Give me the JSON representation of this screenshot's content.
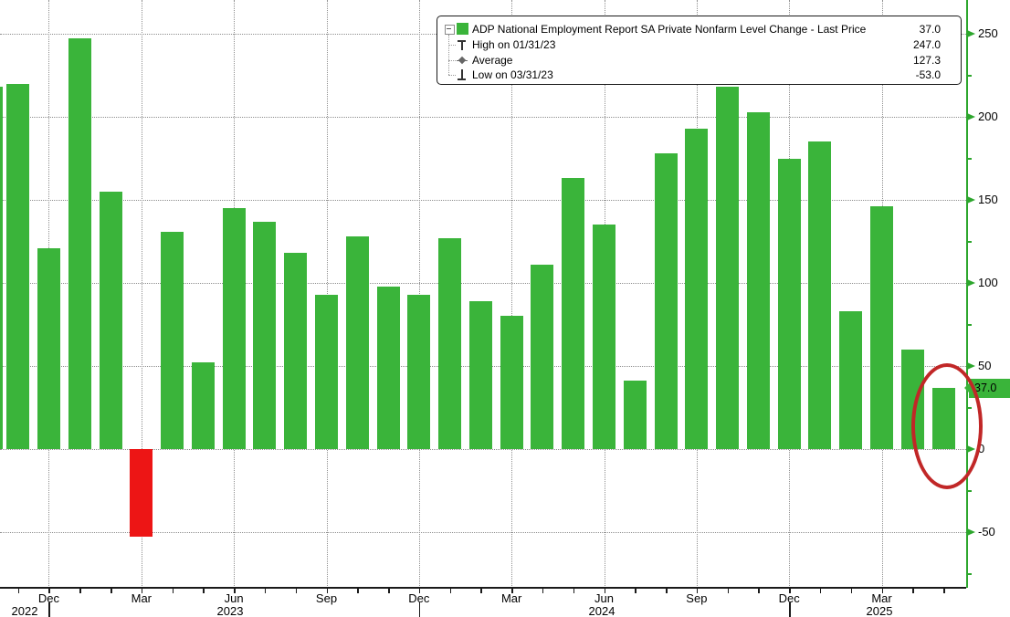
{
  "legend": {
    "rows": [
      {
        "marker": "series-swatch",
        "label": "ADP National Employment Report SA Private Nonfarm Level Change - Last Price",
        "value": "37.0"
      },
      {
        "marker": "high-marker",
        "label": "High on 01/31/23",
        "value": "247.0"
      },
      {
        "marker": "average-marker",
        "label": "Average",
        "value": "127.3"
      },
      {
        "marker": "low-marker",
        "label": "Low on 03/31/23",
        "value": "-53.0"
      }
    ]
  },
  "y_axis": {
    "major_ticks": [
      250,
      200,
      150,
      100,
      50,
      0,
      -50
    ],
    "minor_ticks": [
      225,
      175,
      125,
      75,
      25,
      -25,
      -75
    ],
    "last_price_badge": "37.0"
  },
  "x_axis": {
    "quarter_ticks": [
      "Dec 2022",
      "Mar 2023",
      "Jun 2023",
      "Sep 2023",
      "Dec 2023",
      "Mar 2024",
      "Jun 2024",
      "Sep 2024",
      "Dec 2024",
      "Mar 2025"
    ],
    "quarter_labels": [
      "Dec",
      "Mar",
      "Jun",
      "Sep",
      "Dec",
      "Mar",
      "Jun",
      "Sep",
      "Dec",
      "Mar"
    ],
    "year_labels": [
      "2022",
      "2023",
      "2024",
      "2025"
    ]
  },
  "chart_data": {
    "type": "bar",
    "title": "ADP National Employment Report SA Private Nonfarm Level Change",
    "x": [
      "Oct 2022",
      "Nov 2022",
      "Dec 2022",
      "Jan 2023",
      "Feb 2023",
      "Mar 2023",
      "Apr 2023",
      "May 2023",
      "Jun 2023",
      "Jul 2023",
      "Aug 2023",
      "Sep 2023",
      "Oct 2023",
      "Nov 2023",
      "Dec 2023",
      "Jan 2024",
      "Feb 2024",
      "Mar 2024",
      "Apr 2024",
      "May 2024",
      "Jun 2024",
      "Jul 2024",
      "Aug 2024",
      "Sep 2024",
      "Oct 2024",
      "Nov 2024",
      "Dec 2024",
      "Jan 2025",
      "Feb 2025",
      "Mar 2025",
      "Apr 2025",
      "May 2025"
    ],
    "values": [
      218,
      220,
      121,
      247,
      155,
      -53,
      131,
      52,
      145,
      137,
      118,
      93,
      128,
      98,
      93,
      127,
      89,
      80,
      111,
      163,
      135,
      41,
      178,
      193,
      218,
      203,
      175,
      185,
      83,
      146,
      60,
      37
    ],
    "first_bar_partially_clipped": true,
    "last_price": 37.0,
    "high": {
      "date": "01/31/23",
      "value": 247.0
    },
    "low": {
      "date": "03/31/23",
      "value": -53.0
    },
    "average": 127.3,
    "ylim": [
      -86,
      270
    ],
    "yticks": [
      250,
      200,
      150,
      100,
      50,
      0,
      -50
    ],
    "grid": true,
    "legend_position": "top-right",
    "annotation": {
      "shape": "ellipse",
      "target": "May 2025",
      "meaning": "circled last bar"
    }
  },
  "colors": {
    "bar_positive": "#3ab43a",
    "bar_negative": "#ed1515",
    "axis_green": "#2da62d",
    "annotation_red": "#c12727",
    "grid_gray": "#8f8f8f",
    "text": "#000000",
    "background": "#ffffff"
  }
}
